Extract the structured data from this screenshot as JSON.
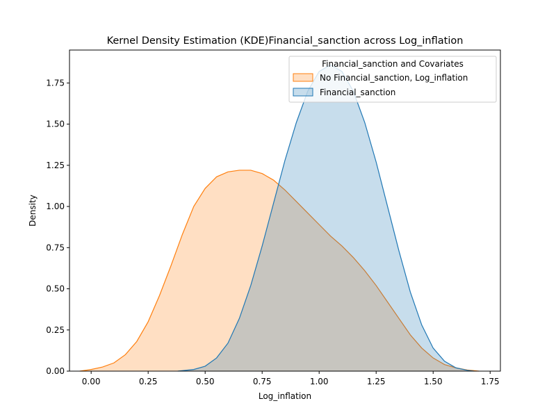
{
  "chart_data": {
    "type": "area",
    "title": "Kernel Density Estimation (KDE)Financial_sanction across Log_inflation",
    "xlabel": "Log_inflation",
    "ylabel": "Density",
    "xlim": [
      -0.095,
      1.795
    ],
    "ylim": [
      0,
      1.95
    ],
    "x_ticks": [
      0.0,
      0.25,
      0.5,
      0.75,
      1.0,
      1.25,
      1.5,
      1.75
    ],
    "x_tick_labels": [
      "0.00",
      "0.25",
      "0.50",
      "0.75",
      "1.00",
      "1.25",
      "1.50",
      "1.75"
    ],
    "y_ticks": [
      0.0,
      0.25,
      0.5,
      0.75,
      1.0,
      1.25,
      1.5,
      1.75
    ],
    "y_tick_labels": [
      "0.00",
      "0.25",
      "0.50",
      "0.75",
      "1.00",
      "1.25",
      "1.50",
      "1.75"
    ],
    "grid": false,
    "legend": {
      "title": "Financial_sanction and Covariates",
      "position": "top-right"
    },
    "series": [
      {
        "name": "No Financial_sanction, Log_inflation",
        "color": "#ff7f0e",
        "fill": "#ffdab9",
        "x": [
          -0.05,
          0.0,
          0.05,
          0.1,
          0.15,
          0.2,
          0.25,
          0.3,
          0.35,
          0.4,
          0.45,
          0.5,
          0.55,
          0.6,
          0.65,
          0.7,
          0.75,
          0.8,
          0.85,
          0.9,
          0.95,
          1.0,
          1.05,
          1.1,
          1.15,
          1.2,
          1.25,
          1.3,
          1.35,
          1.4,
          1.45,
          1.5,
          1.55,
          1.6,
          1.65,
          1.7
        ],
        "y": [
          0.0,
          0.01,
          0.025,
          0.05,
          0.1,
          0.18,
          0.3,
          0.46,
          0.64,
          0.83,
          1.0,
          1.11,
          1.18,
          1.21,
          1.22,
          1.22,
          1.2,
          1.16,
          1.1,
          1.03,
          0.96,
          0.89,
          0.82,
          0.76,
          0.69,
          0.61,
          0.52,
          0.42,
          0.32,
          0.22,
          0.14,
          0.08,
          0.04,
          0.02,
          0.007,
          0.0
        ]
      },
      {
        "name": "Financial_sanction",
        "color": "#1f77b4",
        "fill": "#c5dcef",
        "x": [
          0.38,
          0.45,
          0.5,
          0.55,
          0.6,
          0.65,
          0.7,
          0.75,
          0.8,
          0.85,
          0.9,
          0.95,
          1.0,
          1.05,
          1.1,
          1.15,
          1.2,
          1.25,
          1.3,
          1.35,
          1.4,
          1.45,
          1.5,
          1.55,
          1.6,
          1.65,
          1.68
        ],
        "y": [
          0.0,
          0.01,
          0.03,
          0.08,
          0.17,
          0.32,
          0.52,
          0.76,
          1.02,
          1.28,
          1.51,
          1.7,
          1.82,
          1.86,
          1.82,
          1.7,
          1.51,
          1.27,
          1.0,
          0.73,
          0.48,
          0.28,
          0.14,
          0.06,
          0.02,
          0.005,
          0.0
        ]
      }
    ]
  }
}
